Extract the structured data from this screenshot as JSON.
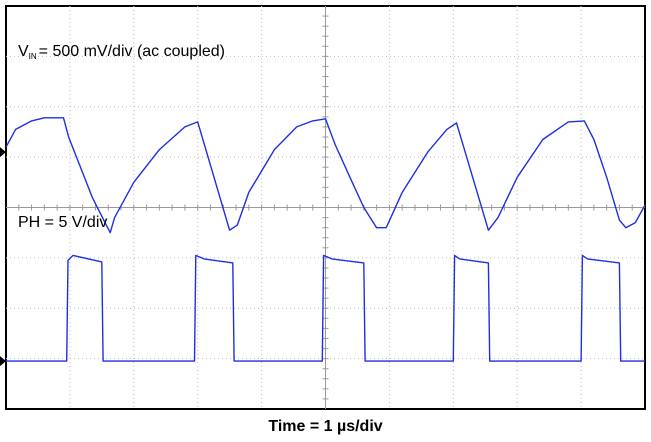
{
  "chart_data": {
    "type": "line",
    "xlabel": "Time = 1 µs/div",
    "x_unit": "µs",
    "xlim": [
      0,
      10
    ],
    "grid": true,
    "divisions": {
      "horizontal": 10,
      "vertical": 8
    },
    "channels": [
      {
        "label_main": "V",
        "label_sub": "IN",
        "label_rest": "= 500 mV/div (ac coupled)",
        "ground_marker_div": 5.1,
        "points": [
          [
            0.0,
            5.2
          ],
          [
            0.15,
            5.55
          ],
          [
            0.4,
            5.72
          ],
          [
            0.6,
            5.78
          ],
          [
            0.9,
            5.78
          ],
          [
            0.98,
            5.4
          ],
          [
            1.15,
            4.85
          ],
          [
            1.35,
            4.2
          ],
          [
            1.55,
            3.7
          ],
          [
            1.63,
            3.5
          ],
          [
            1.7,
            3.8
          ],
          [
            2.0,
            4.5
          ],
          [
            2.4,
            5.15
          ],
          [
            2.8,
            5.6
          ],
          [
            3.0,
            5.7
          ],
          [
            3.5,
            3.55
          ],
          [
            3.62,
            3.65
          ],
          [
            3.8,
            4.3
          ],
          [
            4.2,
            5.15
          ],
          [
            4.55,
            5.6
          ],
          [
            4.8,
            5.72
          ],
          [
            5.0,
            5.76
          ],
          [
            5.15,
            5.25
          ],
          [
            5.4,
            4.55
          ],
          [
            5.6,
            4.0
          ],
          [
            5.8,
            3.6
          ],
          [
            5.95,
            3.6
          ],
          [
            6.2,
            4.3
          ],
          [
            6.6,
            5.1
          ],
          [
            6.9,
            5.55
          ],
          [
            7.05,
            5.68
          ],
          [
            7.55,
            3.55
          ],
          [
            7.7,
            3.8
          ],
          [
            8.0,
            4.6
          ],
          [
            8.4,
            5.35
          ],
          [
            8.8,
            5.7
          ],
          [
            9.05,
            5.72
          ],
          [
            9.2,
            5.35
          ],
          [
            9.4,
            4.6
          ],
          [
            9.6,
            3.75
          ],
          [
            9.7,
            3.6
          ],
          [
            9.85,
            3.7
          ],
          [
            10.0,
            4.05
          ]
        ]
      },
      {
        "label": "PH = 5 V/div",
        "ground_marker_div": 0.95,
        "points": [
          [
            0.0,
            0.95
          ],
          [
            0.95,
            0.95
          ],
          [
            0.97,
            2.95
          ],
          [
            1.05,
            3.05
          ],
          [
            1.5,
            2.92
          ],
          [
            1.52,
            0.95
          ],
          [
            2.95,
            0.95
          ],
          [
            2.97,
            3.05
          ],
          [
            3.1,
            2.98
          ],
          [
            3.55,
            2.9
          ],
          [
            3.57,
            0.95
          ],
          [
            4.95,
            0.95
          ],
          [
            4.97,
            3.05
          ],
          [
            5.1,
            2.98
          ],
          [
            5.6,
            2.9
          ],
          [
            5.62,
            0.95
          ],
          [
            7.0,
            0.95
          ],
          [
            7.02,
            3.05
          ],
          [
            7.1,
            2.98
          ],
          [
            7.55,
            2.9
          ],
          [
            7.57,
            0.95
          ],
          [
            9.0,
            0.95
          ],
          [
            9.02,
            3.05
          ],
          [
            9.1,
            2.98
          ],
          [
            9.6,
            2.9
          ],
          [
            9.62,
            0.95
          ],
          [
            10.0,
            0.95
          ]
        ]
      }
    ]
  },
  "colors": {
    "trace": "#1f2fe0",
    "grid": "#bdbdbd",
    "frame": "#000000"
  }
}
